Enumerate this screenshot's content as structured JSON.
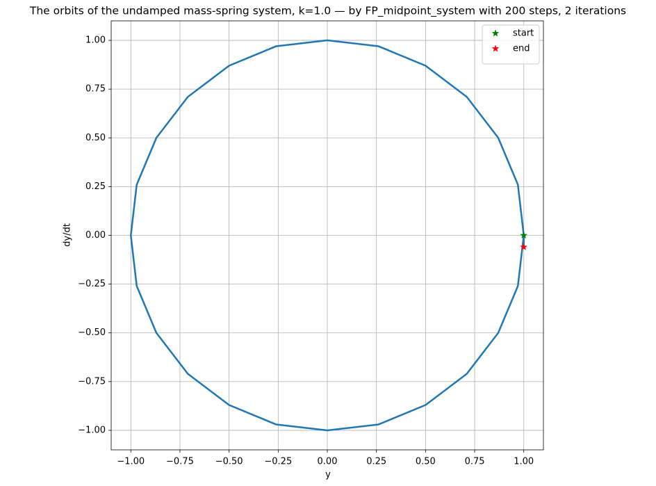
{
  "chart_data": {
    "type": "line",
    "title": "The orbits of the undamped mass-spring system, k=1.0 — by FP_midpoint_system with 200 steps, 2 iterations",
    "xlabel": "y",
    "ylabel": "dy/dt",
    "xlim": [
      -1.1,
      1.1
    ],
    "ylim": [
      -1.1,
      1.1
    ],
    "xticks": [
      {
        "value": -1,
        "label": "−1.00"
      },
      {
        "value": -0.75,
        "label": "−0.75"
      },
      {
        "value": -0.5,
        "label": "−0.50"
      },
      {
        "value": -0.25,
        "label": "−0.25"
      },
      {
        "value": 0,
        "label": "0.00"
      },
      {
        "value": 0.25,
        "label": "0.25"
      },
      {
        "value": 0.5,
        "label": "0.50"
      },
      {
        "value": 0.75,
        "label": "0.75"
      },
      {
        "value": 1,
        "label": "1.00"
      }
    ],
    "yticks": [
      {
        "value": -1,
        "label": "−1.00"
      },
      {
        "value": -0.75,
        "label": "−0.75"
      },
      {
        "value": -0.5,
        "label": "−0.50"
      },
      {
        "value": -0.25,
        "label": "−0.25"
      },
      {
        "value": 0,
        "label": "0.00"
      },
      {
        "value": 0.25,
        "label": "0.25"
      },
      {
        "value": 0.5,
        "label": "0.50"
      },
      {
        "value": 0.75,
        "label": "0.75"
      },
      {
        "value": 1,
        "label": "1.00"
      }
    ],
    "grid": true,
    "legend": "upper right",
    "series": [
      {
        "color": "#1f77b4",
        "marker": "line",
        "x": [
          1,
          0.97,
          0.87,
          0.71,
          0.5,
          0.26,
          0,
          -0.26,
          -0.5,
          -0.71,
          -0.87,
          -0.97,
          -1,
          -0.97,
          -0.87,
          -0.71,
          -0.5,
          -0.26,
          0,
          0.26,
          0.5,
          0.71,
          0.87,
          0.97,
          1,
          1
        ],
        "values": [
          0,
          -0.26,
          -0.5,
          -0.71,
          -0.87,
          -0.97,
          -1,
          -0.97,
          -0.87,
          -0.71,
          -0.5,
          -0.26,
          0,
          0.26,
          0.5,
          0.71,
          0.87,
          0.97,
          1,
          0.97,
          0.87,
          0.71,
          0.5,
          0.26,
          0,
          -0.06
        ]
      },
      {
        "name": "start",
        "color": "green",
        "marker": "star",
        "x": [
          1
        ],
        "values": [
          0
        ]
      },
      {
        "name": "end",
        "color": "red",
        "marker": "star",
        "x": [
          1
        ],
        "values": [
          -0.06
        ]
      }
    ]
  }
}
